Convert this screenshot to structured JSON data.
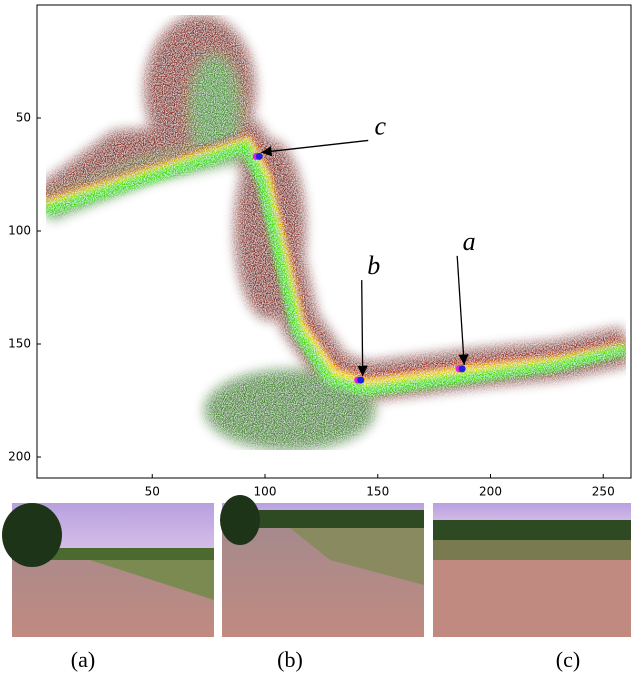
{
  "plot": {
    "xlim": [
      0,
      262
    ],
    "ylim": [
      0,
      209
    ],
    "xticks": [
      50,
      100,
      150,
      200,
      250
    ],
    "yticks": [
      50,
      100,
      150,
      200
    ],
    "markers": [
      {
        "label": "c",
        "x": 97,
        "y": 67
      },
      {
        "label": "b",
        "x": 142,
        "y": 166
      },
      {
        "label": "a",
        "x": 187,
        "y": 161
      }
    ]
  },
  "captions": [
    "(a)",
    "(b)",
    "(c)"
  ]
}
